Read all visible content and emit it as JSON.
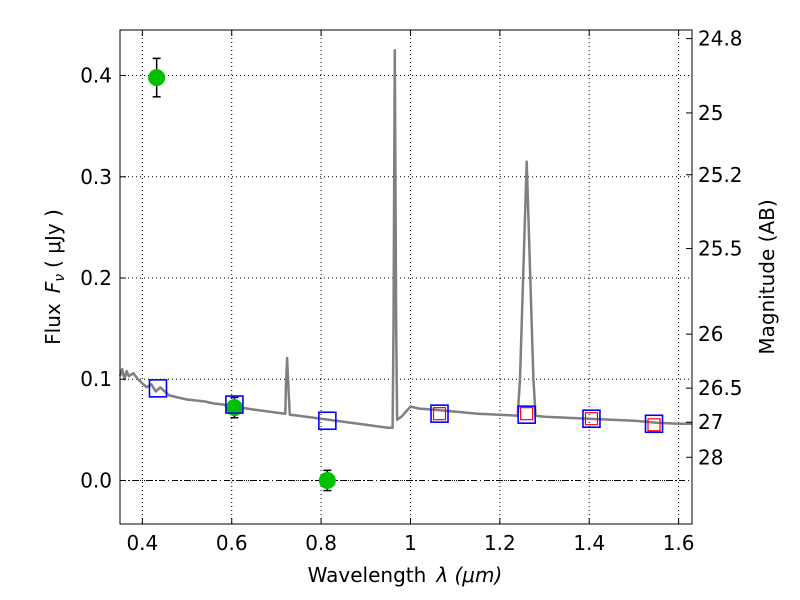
{
  "chart_data": {
    "type": "scatter",
    "xlabel": "Wavelength",
    "xlabel_symbol": "λ (μm)",
    "ylabel": "Flux",
    "ylabel_symbol": "F",
    "ylabel_sub": "ν",
    "ylabel_unit": "( μJy )",
    "y2label": "Magnitude (AB)",
    "xlim": [
      0.35,
      1.63
    ],
    "ylim": [
      -0.043,
      0.445
    ],
    "grid": true,
    "x_ticks": [
      {
        "v": 0.4,
        "label": "0.4"
      },
      {
        "v": 0.6,
        "label": "0.6"
      },
      {
        "v": 0.8,
        "label": "0.8"
      },
      {
        "v": 1.0,
        "label": "1"
      },
      {
        "v": 1.2,
        "label": "1.2"
      },
      {
        "v": 1.4,
        "label": "1.4"
      },
      {
        "v": 1.6,
        "label": "1.6"
      }
    ],
    "y_ticks": [
      {
        "v": 0.0,
        "label": "0.0"
      },
      {
        "v": 0.1,
        "label": "0.1"
      },
      {
        "v": 0.2,
        "label": "0.2"
      },
      {
        "v": 0.3,
        "label": "0.3"
      },
      {
        "v": 0.4,
        "label": "0.4"
      }
    ],
    "mag_ticks": [
      {
        "label": "24.8",
        "mag": 24.8
      },
      {
        "label": "25",
        "mag": 25.0
      },
      {
        "label": "25.2",
        "mag": 25.2
      },
      {
        "label": "25.5",
        "mag": 25.5
      },
      {
        "label": "26",
        "mag": 26.0
      },
      {
        "label": "26.5",
        "mag": 26.5
      },
      {
        "label": "27",
        "mag": 27.0
      },
      {
        "label": "28",
        "mag": 28.0
      }
    ],
    "colors": {
      "model": "#808080",
      "observed": "#00c000",
      "model_photometry": "#0000ff",
      "photometry_inner": "#ff0000",
      "errorbar": "#000000",
      "zero_line": "#000000",
      "grid": "#000000"
    },
    "series": [
      {
        "kind": "sed-model",
        "points": [
          [
            0.35,
            0.103
          ],
          [
            0.355,
            0.11
          ],
          [
            0.36,
            0.1
          ],
          [
            0.365,
            0.108
          ],
          [
            0.37,
            0.103
          ],
          [
            0.38,
            0.106
          ],
          [
            0.39,
            0.1
          ],
          [
            0.4,
            0.096
          ],
          [
            0.41,
            0.092
          ],
          [
            0.42,
            0.095
          ],
          [
            0.43,
            0.088
          ],
          [
            0.44,
            0.092
          ],
          [
            0.45,
            0.088
          ],
          [
            0.46,
            0.084
          ],
          [
            0.48,
            0.082
          ],
          [
            0.5,
            0.08
          ],
          [
            0.52,
            0.079
          ],
          [
            0.54,
            0.078
          ],
          [
            0.56,
            0.076
          ],
          [
            0.58,
            0.075
          ],
          [
            0.6,
            0.073
          ],
          [
            0.62,
            0.072
          ],
          [
            0.65,
            0.07
          ],
          [
            0.7,
            0.067
          ],
          [
            0.72,
            0.066
          ],
          [
            0.721,
            0.09
          ],
          [
            0.724,
            0.121
          ],
          [
            0.727,
            0.09
          ],
          [
            0.73,
            0.065
          ],
          [
            0.75,
            0.064
          ],
          [
            0.8,
            0.061
          ],
          [
            0.85,
            0.058
          ],
          [
            0.9,
            0.055
          ],
          [
            0.95,
            0.052
          ],
          [
            0.96,
            0.052
          ],
          [
            0.962,
            0.15
          ],
          [
            0.965,
            0.425
          ],
          [
            0.968,
            0.15
          ],
          [
            0.97,
            0.06
          ],
          [
            0.98,
            0.063
          ],
          [
            0.99,
            0.068
          ],
          [
            1.0,
            0.073
          ],
          [
            1.01,
            0.072
          ],
          [
            1.02,
            0.071
          ],
          [
            1.05,
            0.07
          ],
          [
            1.1,
            0.068
          ],
          [
            1.15,
            0.066
          ],
          [
            1.2,
            0.065
          ],
          [
            1.24,
            0.064
          ],
          [
            1.245,
            0.1
          ],
          [
            1.26,
            0.315
          ],
          [
            1.275,
            0.1
          ],
          [
            1.28,
            0.064
          ],
          [
            1.3,
            0.063
          ],
          [
            1.35,
            0.062
          ],
          [
            1.4,
            0.061
          ],
          [
            1.45,
            0.06
          ],
          [
            1.5,
            0.059
          ],
          [
            1.55,
            0.057
          ],
          [
            1.6,
            0.056
          ],
          [
            1.63,
            0.056
          ]
        ]
      },
      {
        "kind": "observed",
        "points": [
          {
            "x": 0.432,
            "y": 0.398,
            "err": 0.019
          },
          {
            "x": 0.606,
            "y": 0.072,
            "err": 0.01
          },
          {
            "x": 0.814,
            "y": 0.0,
            "err": 0.01
          }
        ]
      },
      {
        "kind": "model-photometry",
        "points": [
          {
            "x": 0.435,
            "y": 0.091
          },
          {
            "x": 0.606,
            "y": 0.075
          },
          {
            "x": 0.814,
            "y": 0.059
          },
          {
            "x": 1.065,
            "y": 0.066
          },
          {
            "x": 1.26,
            "y": 0.065
          },
          {
            "x": 1.405,
            "y": 0.061
          },
          {
            "x": 1.545,
            "y": 0.056
          }
        ]
      },
      {
        "kind": "photometry-inner",
        "points": [
          {
            "x": 1.065,
            "y": 0.066
          },
          {
            "x": 1.26,
            "y": 0.066
          },
          {
            "x": 1.405,
            "y": 0.061
          },
          {
            "x": 1.545,
            "y": 0.055
          }
        ]
      }
    ]
  }
}
